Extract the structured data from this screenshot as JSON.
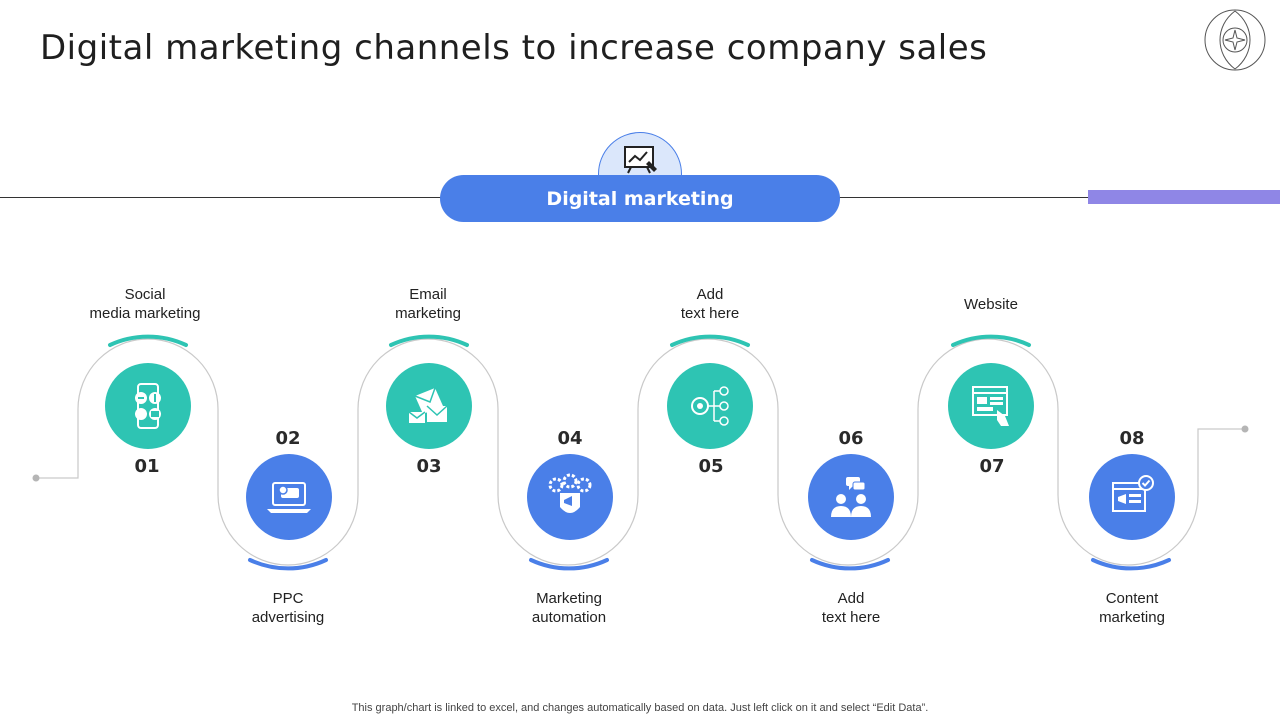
{
  "page": {
    "title": "Digital marketing channels to increase company sales",
    "footer_note": "This graph/chart is linked to excel,  and changes automatically based on data. Just left click on it and select “Edit Data”."
  },
  "header": {
    "pill_label": "Digital marketing",
    "icon": "chart-presentation-icon"
  },
  "colors": {
    "teal": "#2ec4b3",
    "blue": "#4a7fe8",
    "accent_bar": "#8f86e6",
    "connector": "#c9c9c9"
  },
  "steps": [
    {
      "number": "01",
      "label_line1": "Social",
      "label_line2": "media marketing",
      "icon": "social-media-phone-icon"
    },
    {
      "number": "02",
      "label_line1": "PPC",
      "label_line2": "advertising",
      "icon": "laptop-ads-icon"
    },
    {
      "number": "03",
      "label_line1": "Email",
      "label_line2": "marketing",
      "icon": "email-envelopes-icon"
    },
    {
      "number": "04",
      "label_line1": "Marketing",
      "label_line2": "automation",
      "icon": "gears-megaphone-icon"
    },
    {
      "number": "05",
      "label_line1": "Add",
      "label_line2": "text here",
      "icon": "network-target-icon"
    },
    {
      "number": "06",
      "label_line1": "Add",
      "label_line2": "text here",
      "icon": "people-chat-icon"
    },
    {
      "number": "07",
      "label_line1": "Website",
      "label_line2": "",
      "icon": "website-browser-icon"
    },
    {
      "number": "08",
      "label_line1": "Content",
      "label_line2": "marketing",
      "icon": "content-browser-megaphone-icon"
    }
  ]
}
